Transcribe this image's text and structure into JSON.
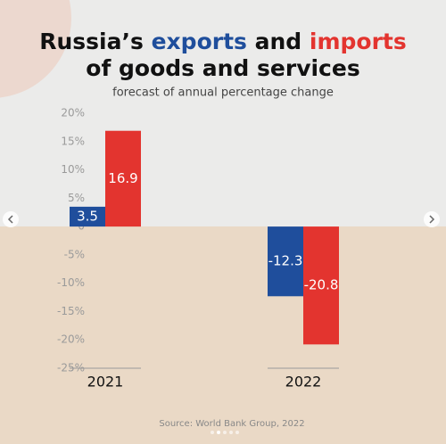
{
  "chart_data": {
    "type": "bar",
    "title_lines": [
      "Russia’s exports and imports",
      "of goods and services"
    ],
    "subtitle": "forecast of annual percentage change",
    "source": "Source: World Bank Group, 2022",
    "categories": [
      "2021",
      "2022"
    ],
    "series": [
      {
        "name": "exports",
        "color": "#1f4e9c",
        "values": [
          3.5,
          -12.3
        ]
      },
      {
        "name": "imports",
        "color": "#e3342f",
        "values": [
          16.9,
          -20.8
        ]
      }
    ],
    "ylim": [
      -25,
      20
    ],
    "yticks": [
      {
        "value": 20,
        "label": "20%"
      },
      {
        "value": 15,
        "label": "15%"
      },
      {
        "value": 10,
        "label": "10%"
      },
      {
        "value": 5,
        "label": "5%"
      },
      {
        "value": 0,
        "label": "0"
      },
      {
        "value": -5,
        "label": "-5%"
      },
      {
        "value": -10,
        "label": "-10%"
      },
      {
        "value": -15,
        "label": "-15%"
      },
      {
        "value": -20,
        "label": "-20%"
      },
      {
        "value": -25,
        "label": "-25%"
      }
    ]
  }
}
